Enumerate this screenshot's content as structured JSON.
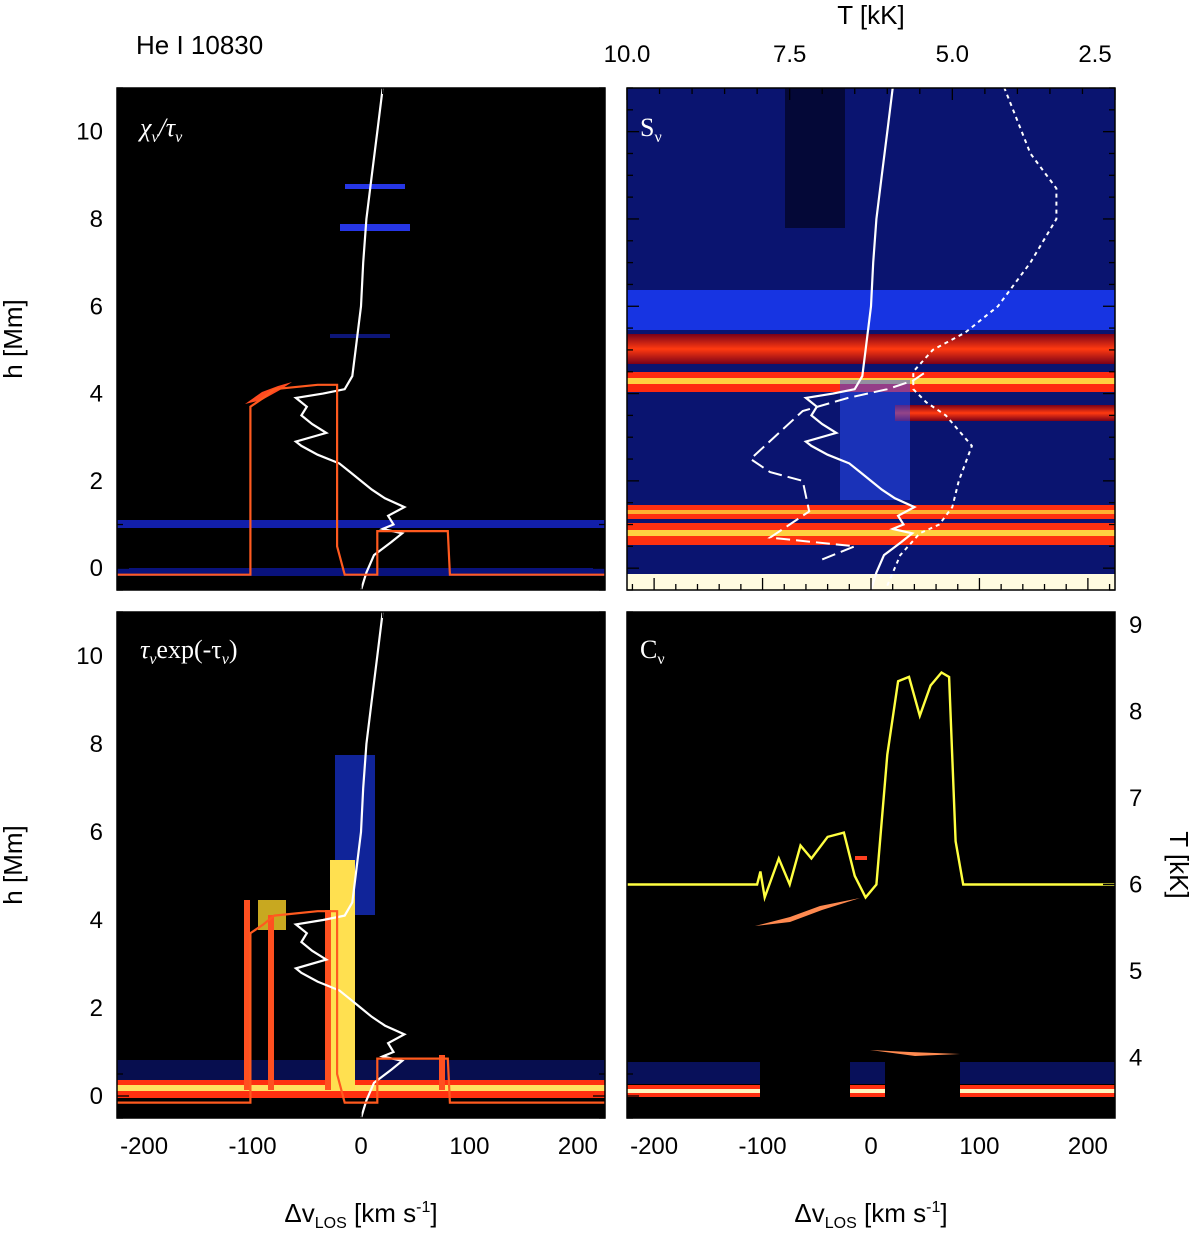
{
  "chart_data": {
    "type": "heatmap",
    "line_label": "He I 10830",
    "x_axis": {
      "label_main": "Δv",
      "label_sub": "LOS",
      "label_unit": "[km s",
      "label_exp": "-1",
      "label_close": "]",
      "range": [
        -225,
        225
      ],
      "ticks": [
        -200,
        -100,
        0,
        100,
        200
      ],
      "tick_labels": [
        "-200",
        "-100",
        "0",
        "100",
        "200"
      ]
    },
    "y_axis": {
      "label": "h [Mm]",
      "range": [
        -0.5,
        11
      ],
      "ticks": [
        0,
        2,
        4,
        6,
        8,
        10
      ],
      "tick_labels": [
        "0",
        "2",
        "4",
        "6",
        "8",
        "10"
      ]
    },
    "top_axis": {
      "label": "T [kK]",
      "range": [
        10.0,
        2.5
      ],
      "ticks": [
        10.0,
        7.5,
        5.0,
        2.5
      ],
      "tick_labels": [
        "10.0",
        "7.5",
        "5.0",
        "2.5"
      ]
    },
    "right_axis": {
      "label": "T [kK]",
      "range": [
        3.3,
        9.15
      ],
      "ticks": [
        4,
        5,
        6,
        7,
        8,
        9
      ],
      "tick_labels": [
        "4",
        "5",
        "6",
        "7",
        "8",
        "9"
      ]
    },
    "panels": [
      {
        "id": "chi-tau",
        "label_a": "χ",
        "label_b": "/τ"
      },
      {
        "id": "source-function",
        "label_a": "S"
      },
      {
        "id": "tau-exp",
        "label_a": "τ",
        "label_b": "exp(-τ",
        "label_c": ")"
      },
      {
        "id": "contribution",
        "label_a": "C"
      }
    ],
    "label_subscript": "ν",
    "velocity_profile_kms": {
      "h": [
        -0.5,
        -0.1,
        0.3,
        0.6,
        0.8,
        0.9,
        1.0,
        1.2,
        1.4,
        1.6,
        1.8,
        2.0,
        2.2,
        2.4,
        2.6,
        2.8,
        2.9,
        3.1,
        3.3,
        3.5,
        3.7,
        3.9,
        4.0,
        4.1,
        4.4,
        5.0,
        6.0,
        7.0,
        8.0,
        9.0,
        10.0,
        11.0
      ],
      "v": [
        0,
        5,
        12,
        28,
        38,
        20,
        30,
        25,
        40,
        22,
        10,
        0,
        -10,
        -20,
        -40,
        -55,
        -60,
        -32,
        -45,
        -55,
        -50,
        -60,
        -35,
        -15,
        -8,
        -5,
        0,
        2,
        5,
        10,
        15,
        20
      ]
    },
    "tau_unity_kms": {
      "h": [
        -0.15,
        -0.15,
        3.7,
        3.9,
        4.1,
        4.2,
        4.2,
        0.5,
        -0.15,
        -0.15,
        0.85,
        0.85,
        -0.15,
        -0.15
      ],
      "v": [
        -225,
        -102,
        -102,
        -90,
        -80,
        -40,
        -22,
        -22,
        -15,
        15,
        15,
        80,
        82,
        225
      ]
    },
    "temperature_profile_kK": {
      "v": [
        -225,
        -105,
        -102,
        -98,
        -85,
        -75,
        -65,
        -55,
        -40,
        -25,
        -15,
        -5,
        5,
        15,
        25,
        35,
        45,
        55,
        65,
        72,
        78,
        85,
        95,
        225
      ],
      "T": [
        6.0,
        6.0,
        6.15,
        5.85,
        6.3,
        6.0,
        6.45,
        6.3,
        6.55,
        6.6,
        6.1,
        5.85,
        6.0,
        7.5,
        8.35,
        8.4,
        7.95,
        8.3,
        8.45,
        8.4,
        6.5,
        6.0,
        6.0,
        6.0
      ]
    },
    "source_temperature_dotted_kK": {
      "T": [
        6.0,
        5.8,
        5.5,
        5.2,
        5.0,
        4.9,
        4.7,
        5.1,
        5.4,
        5.6,
        5.6,
        5.3,
        4.8,
        4.3,
        3.8,
        3.4,
        3.4,
        3.8,
        4.2
      ],
      "h": [
        -0.4,
        0.3,
        0.8,
        1.0,
        1.4,
        2.0,
        2.8,
        3.5,
        3.8,
        4.1,
        4.5,
        5.0,
        5.4,
        6.0,
        7.0,
        8.0,
        8.7,
        9.5,
        11.0
      ]
    },
    "source_temperature_dashed_kK": {
      "T": [
        7.0,
        6.5,
        7.8,
        7.5,
        7.2,
        7.3,
        7.8,
        8.1,
        7.3,
        6.6,
        6.0,
        5.6,
        5.4
      ],
      "h": [
        0.2,
        0.5,
        0.7,
        1.0,
        1.3,
        2.0,
        2.2,
        2.5,
        3.6,
        3.9,
        4.1,
        4.3,
        4.5
      ]
    }
  }
}
